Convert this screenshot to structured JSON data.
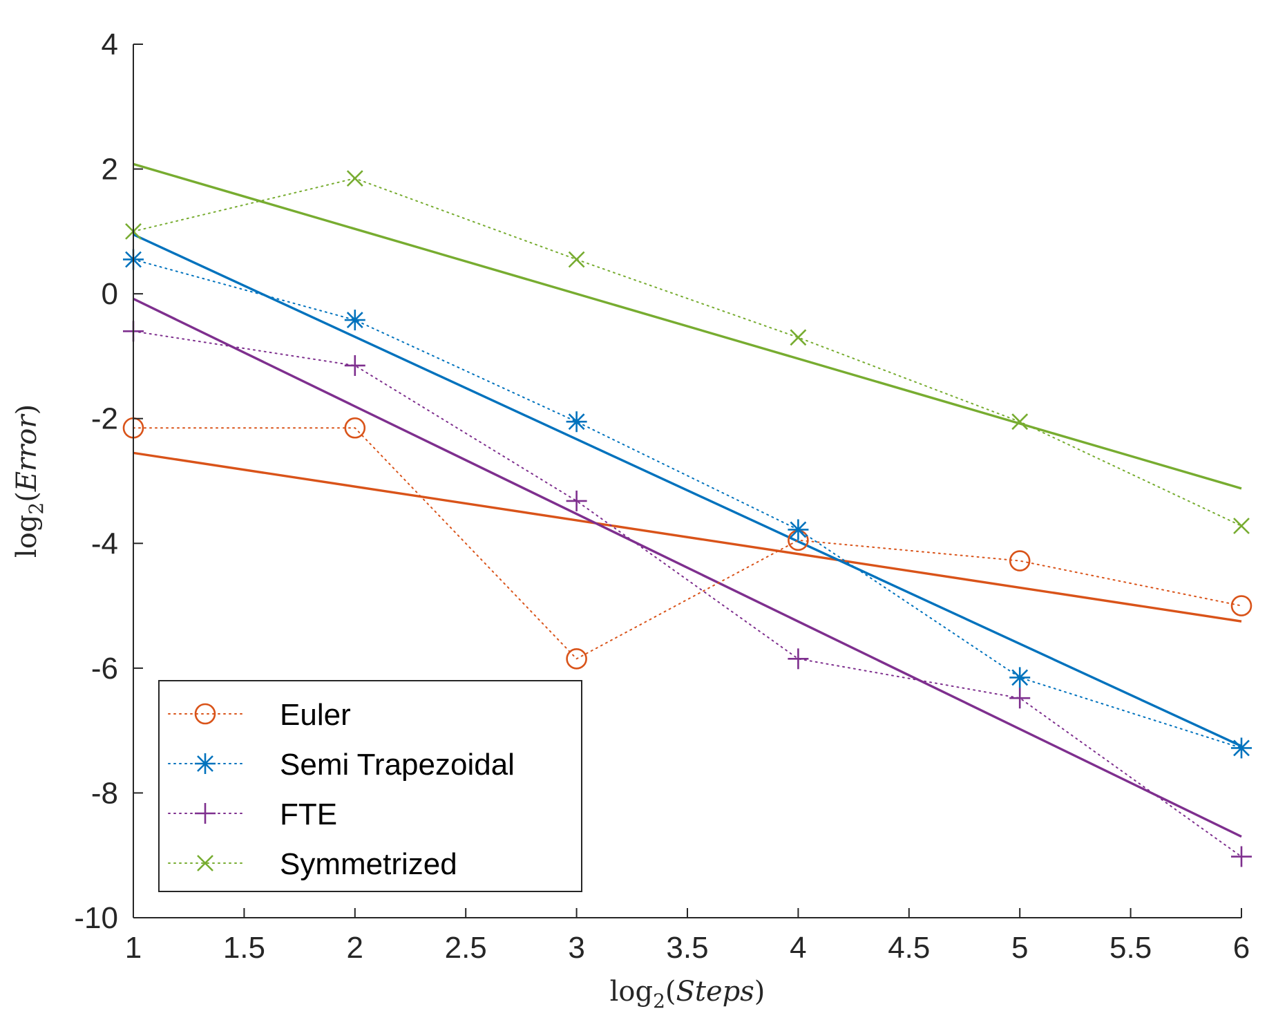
{
  "chart_data": {
    "type": "line",
    "title": "",
    "xlabel": "log2(Steps)",
    "ylabel": "log2(Error)",
    "xlabel_parts": {
      "fn": "log",
      "sub": "2",
      "arg": "Steps"
    },
    "ylabel_parts": {
      "fn": "log",
      "sub": "2",
      "arg": "Error"
    },
    "xlim": [
      1,
      6
    ],
    "ylim": [
      -10,
      4
    ],
    "xticks": [
      1,
      1.5,
      2,
      2.5,
      3,
      3.5,
      4,
      4.5,
      5,
      5.5,
      6
    ],
    "xtick_labels": [
      "1",
      "1.5",
      "2",
      "2.5",
      "3",
      "3.5",
      "4",
      "4.5",
      "5",
      "5.5",
      "6"
    ],
    "yticks": [
      -10,
      -8,
      -6,
      -4,
      -2,
      0,
      2,
      4
    ],
    "ytick_labels": [
      "-10",
      "-8",
      "-6",
      "-4",
      "-2",
      "0",
      "2",
      "4"
    ],
    "grid": false,
    "legend_position": "bottom-left",
    "x": [
      1,
      2,
      3,
      4,
      5,
      6
    ],
    "series": [
      {
        "name": "Euler",
        "color": "#D95319",
        "marker": "circle",
        "values": [
          -2.15,
          -2.15,
          -5.85,
          -3.95,
          -4.28,
          -5.0
        ],
        "fit": {
          "x": [
            1,
            6
          ],
          "y": [
            -2.55,
            -5.25
          ]
        }
      },
      {
        "name": "Semi Trapezoidal",
        "color": "#0072BD",
        "marker": "asterisk",
        "values": [
          0.55,
          -0.42,
          -2.05,
          -3.78,
          -6.15,
          -7.28
        ],
        "fit": {
          "x": [
            1,
            6
          ],
          "y": [
            0.95,
            -7.25
          ]
        }
      },
      {
        "name": "FTE",
        "color": "#7E2F8E",
        "marker": "plus",
        "values": [
          -0.6,
          -1.15,
          -3.32,
          -5.85,
          -6.48,
          -9.02
        ],
        "fit": {
          "x": [
            1,
            6
          ],
          "y": [
            -0.08,
            -8.7
          ]
        }
      },
      {
        "name": "Symmetrized",
        "color": "#77AC30",
        "marker": "x",
        "values": [
          1.0,
          1.85,
          0.55,
          -0.7,
          -2.05,
          -3.72
        ],
        "fit": {
          "x": [
            1,
            6
          ],
          "y": [
            2.08,
            -3.12
          ]
        }
      }
    ]
  }
}
